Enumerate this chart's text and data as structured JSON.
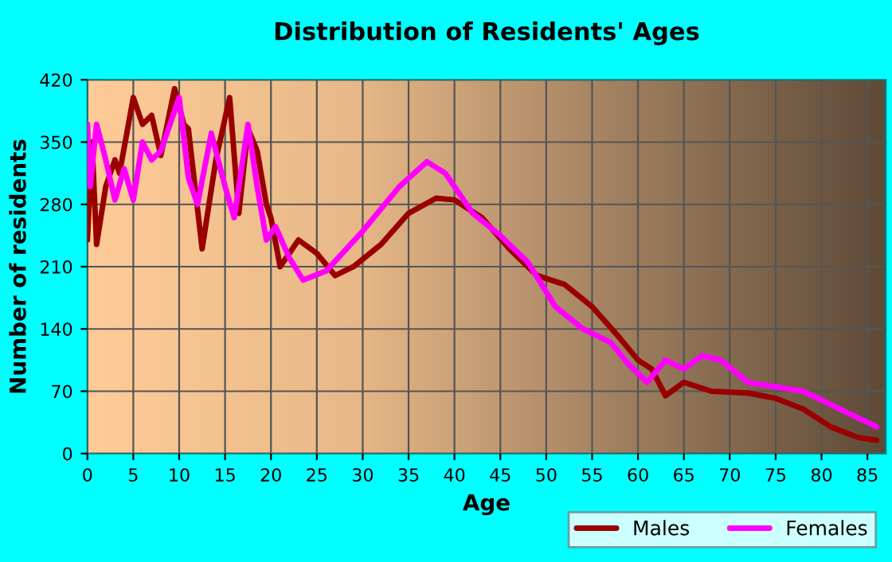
{
  "chart_data": {
    "type": "line",
    "title": "Distribution of Residents' Ages",
    "xlabel": "Age",
    "ylabel": "Number of residents",
    "xlim": [
      0,
      87
    ],
    "xticks": [
      0,
      5,
      10,
      15,
      20,
      25,
      30,
      35,
      40,
      45,
      50,
      55,
      60,
      65,
      70,
      75,
      80,
      85
    ],
    "ylim": [
      0,
      420
    ],
    "yticks": [
      0,
      70,
      140,
      210,
      280,
      350,
      420
    ],
    "grid": true,
    "legend": "bottom right",
    "series": [
      {
        "name": "Males",
        "color": "#990000",
        "x": [
          0,
          0.5,
          1,
          2,
          3,
          3.5,
          5,
          6,
          7,
          8,
          9.5,
          10.5,
          11,
          12.5,
          14,
          15.5,
          16.5,
          17.5,
          18.5,
          19.5,
          20,
          21,
          23,
          25,
          27,
          29,
          32,
          35,
          38,
          40,
          43,
          46,
          49,
          52,
          55,
          58,
          60,
          61.5,
          63,
          65,
          68,
          72,
          75,
          78,
          81,
          84,
          86
        ],
        "values": [
          240,
          350,
          235,
          300,
          330,
          315,
          400,
          370,
          380,
          335,
          410,
          370,
          365,
          230,
          330,
          400,
          270,
          365,
          340,
          280,
          265,
          210,
          240,
          225,
          200,
          210,
          235,
          270,
          287,
          285,
          265,
          230,
          200,
          190,
          165,
          130,
          105,
          95,
          65,
          80,
          70,
          68,
          62,
          50,
          30,
          18,
          15
        ]
      },
      {
        "name": "Females",
        "color": "#ff00ff",
        "x": [
          0,
          0.3,
          1,
          2,
          3,
          4,
          5,
          6,
          7,
          8,
          9,
          10,
          11,
          12,
          13.5,
          15,
          16,
          17.5,
          18.5,
          19.5,
          20.5,
          22,
          23.5,
          26,
          30,
          34,
          37,
          39,
          42,
          45,
          48,
          51,
          54,
          57,
          59,
          61,
          63,
          65,
          67,
          69,
          72,
          75,
          78,
          82,
          86
        ],
        "values": [
          370,
          300,
          370,
          330,
          285,
          320,
          285,
          350,
          330,
          340,
          370,
          400,
          310,
          280,
          360,
          300,
          265,
          370,
          300,
          240,
          255,
          220,
          195,
          205,
          250,
          300,
          328,
          315,
          270,
          245,
          215,
          165,
          140,
          125,
          100,
          80,
          105,
          95,
          110,
          105,
          80,
          75,
          70,
          50,
          30
        ]
      }
    ]
  }
}
